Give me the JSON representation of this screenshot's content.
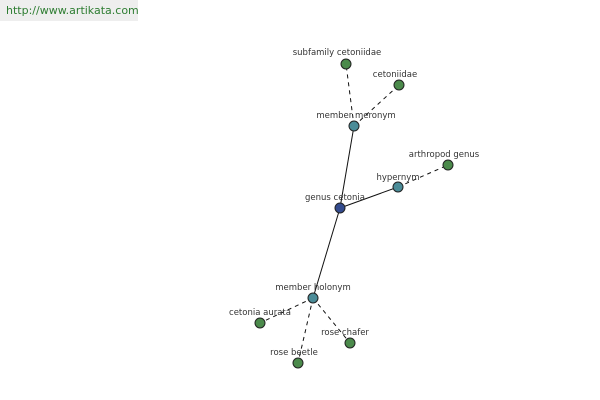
{
  "header": {
    "url": "http://www.artikata.com"
  },
  "nodes": [
    {
      "label": "genus cetonia"
    },
    {
      "label": "member meronym"
    },
    {
      "label": "subfamily cetoniidae"
    },
    {
      "label": "cetoniidae"
    },
    {
      "label": "hypernym"
    },
    {
      "label": "arthropod genus"
    },
    {
      "label": "member holonym"
    },
    {
      "label": "cetonia aurata"
    },
    {
      "label": "rose beetle"
    },
    {
      "label": "rose chafer"
    }
  ]
}
